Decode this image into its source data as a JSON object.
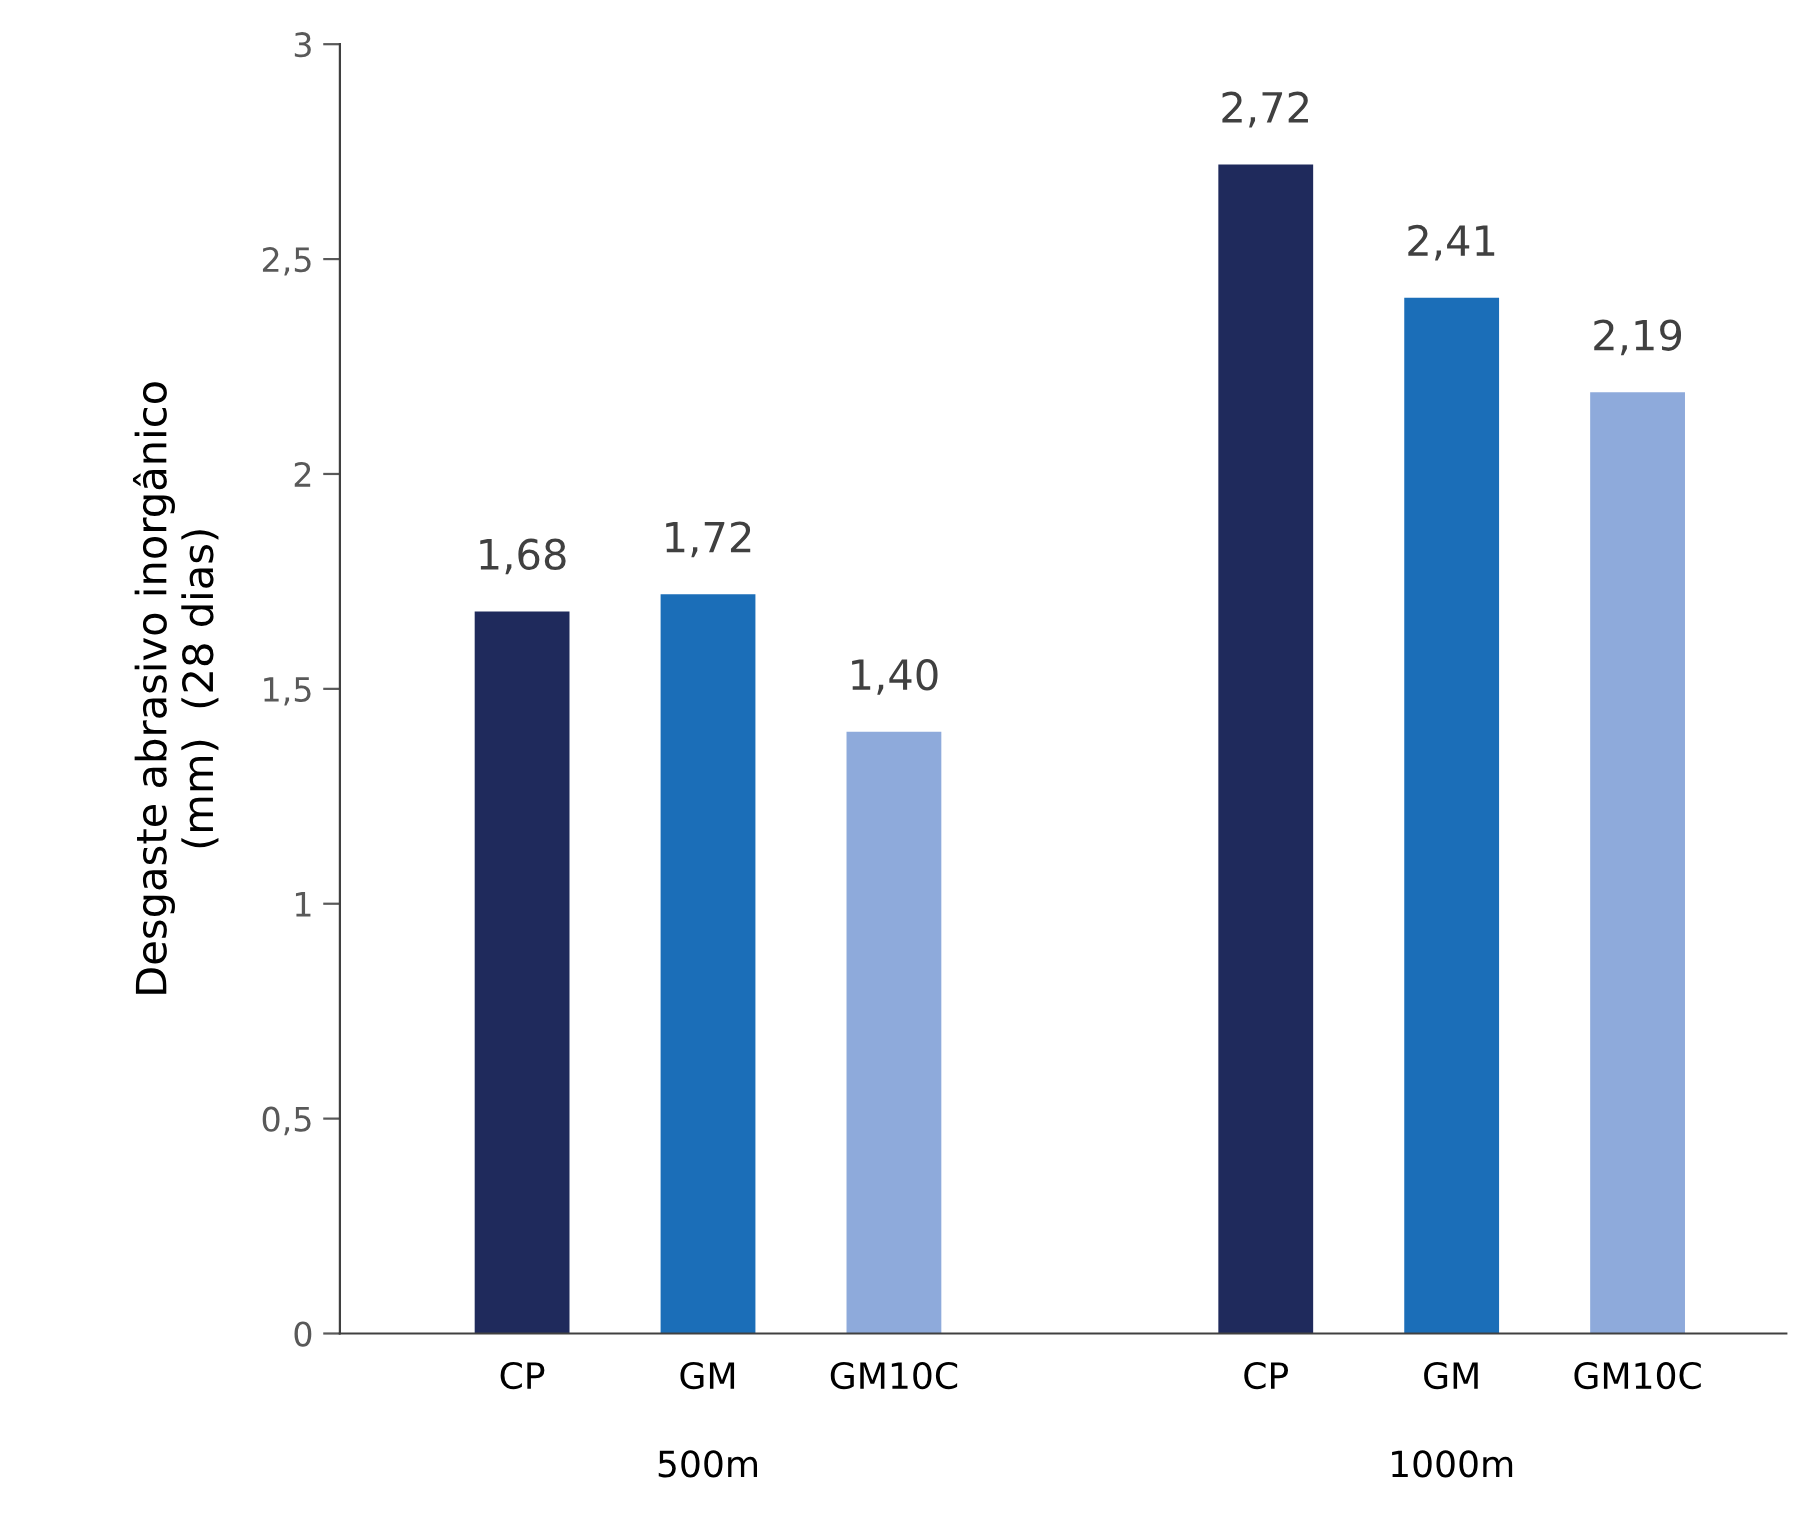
{
  "chart_data": {
    "type": "bar",
    "ylabel": "Desgaste abrasivo inorgânico\n(mm)  (28 dias)",
    "categories": [
      "500m",
      "1000m"
    ],
    "series": [
      {
        "name": "CP",
        "color": "#1f2a5c",
        "values": [
          1.68,
          2.72
        ],
        "value_labels": [
          "1,68",
          "2,72"
        ]
      },
      {
        "name": "GM",
        "color": "#1b6eb8",
        "values": [
          1.72,
          2.41
        ],
        "value_labels": [
          "1,72",
          "2,41"
        ]
      },
      {
        "name": "GM10C",
        "color": "#8eaadb",
        "values": [
          1.4,
          2.19
        ],
        "value_labels": [
          "1,40",
          "2,19"
        ]
      }
    ],
    "ylim": [
      0,
      3
    ],
    "yticks": [
      0,
      {
        "value": 0.5,
        "label": "0,5"
      },
      1,
      {
        "value": 1.5,
        "label": "1,5"
      },
      2,
      {
        "value": 2.5,
        "label": "2,5"
      },
      3
    ],
    "grid": false,
    "legend": false
  }
}
